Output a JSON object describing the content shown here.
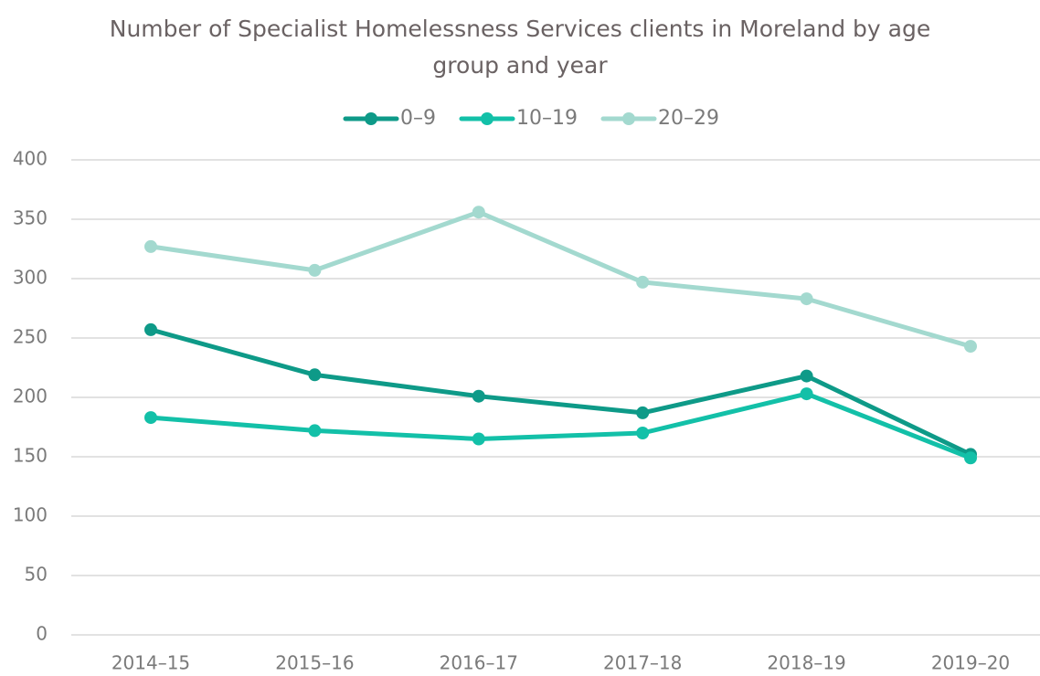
{
  "chart_data": {
    "type": "line",
    "title": "Number of Specialist Homelessness Services clients in Moreland by age group and year",
    "categories": [
      "2014–15",
      "2015–16",
      "2016–17",
      "2017–18",
      "2018–19",
      "2019–20"
    ],
    "series": [
      {
        "name": "0–9",
        "color": "#0e9a88",
        "values": [
          257,
          219,
          201,
          187,
          218,
          152
        ]
      },
      {
        "name": "10–19",
        "color": "#13c0a8",
        "values": [
          183,
          172,
          165,
          170,
          203,
          149
        ]
      },
      {
        "name": "20–29",
        "color": "#a3d9cf",
        "values": [
          327,
          307,
          356,
          297,
          283,
          243
        ]
      }
    ],
    "ylim": [
      0,
      400
    ],
    "yticks": [
      0,
      50,
      100,
      150,
      200,
      250,
      300,
      350,
      400
    ],
    "grid": true,
    "legend": "top"
  }
}
